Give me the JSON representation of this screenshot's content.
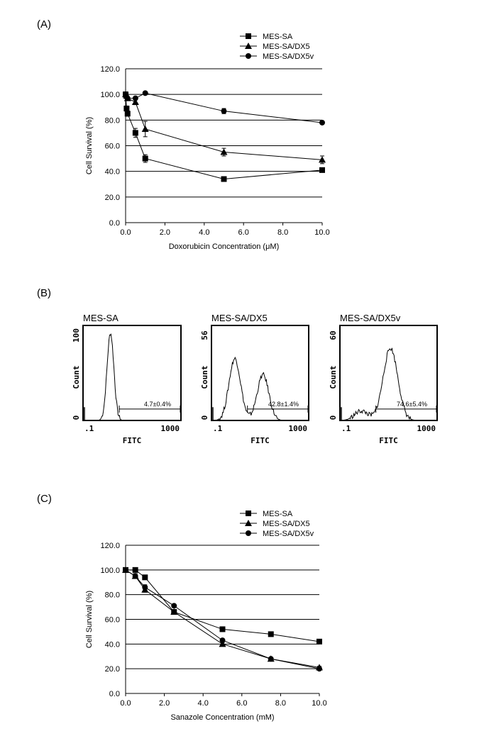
{
  "panels": {
    "a_label": "(A)",
    "b_label": "(B)",
    "c_label": "(C)"
  },
  "chart_data": [
    {
      "id": "A",
      "type": "line",
      "xlabel": "Doxorubicin Concentration (μM)",
      "ylabel": "Cell Survival (%)",
      "xlim": [
        0,
        10
      ],
      "ylim": [
        0,
        120
      ],
      "xticks": [
        "0.0",
        "2.0",
        "4.0",
        "6.0",
        "8.0",
        "10.0"
      ],
      "yticks": [
        "0.0",
        "20.0",
        "40.0",
        "60.0",
        "80.0",
        "100.0",
        "120.0"
      ],
      "grid": "horizontal",
      "legend": "top-right",
      "series": [
        {
          "name": "MES-SA",
          "marker": "square",
          "x": [
            0,
            0.05,
            0.1,
            0.5,
            1,
            5,
            10
          ],
          "y": [
            100,
            89,
            85,
            70,
            50,
            34,
            41
          ],
          "err": [
            2,
            2,
            2,
            3.5,
            3,
            1,
            1.5
          ]
        },
        {
          "name": "MES-SA/DX5",
          "marker": "triangle",
          "x": [
            0,
            0.05,
            0.1,
            0.5,
            1,
            5,
            10
          ],
          "y": [
            100,
            99,
            97,
            94,
            73,
            55,
            49
          ],
          "err": [
            1,
            1,
            1,
            2,
            6,
            3,
            3
          ]
        },
        {
          "name": "MES-SA/DX5v",
          "marker": "circle",
          "x": [
            0,
            0.05,
            0.1,
            0.5,
            1,
            5,
            10
          ],
          "y": [
            100,
            98,
            97,
            97,
            101,
            87,
            78
          ],
          "err": [
            1,
            1,
            1,
            1,
            1,
            2,
            1
          ]
        }
      ]
    },
    {
      "id": "C",
      "type": "line",
      "xlabel": "Sanazole Concentration (mM)",
      "ylabel": "Cell Survival (%)",
      "xlim": [
        0,
        10
      ],
      "ylim": [
        0,
        120
      ],
      "xticks": [
        "0.0",
        "2.0",
        "4.0",
        "6.0",
        "8.0",
        "10.0"
      ],
      "yticks": [
        "0.0",
        "20.0",
        "40.0",
        "60.0",
        "80.0",
        "100.0",
        "120.0"
      ],
      "grid": "horizontal",
      "legend": "top-right",
      "series": [
        {
          "name": "MES-SA",
          "marker": "square",
          "x": [
            0,
            0.5,
            1,
            2.5,
            5,
            7.5,
            10
          ],
          "y": [
            100,
            100,
            94,
            66,
            52,
            48,
            42
          ],
          "err": [
            0,
            1,
            1,
            1,
            1,
            1,
            1
          ]
        },
        {
          "name": "MES-SA/DX5",
          "marker": "triangle",
          "x": [
            0,
            0.5,
            1,
            2.5,
            5,
            7.5,
            10
          ],
          "y": [
            100,
            95,
            84,
            66,
            40,
            28,
            21
          ],
          "err": [
            0,
            2,
            2,
            1,
            1,
            1,
            1
          ]
        },
        {
          "name": "MES-SA/DX5v",
          "marker": "circle",
          "x": [
            0,
            0.5,
            1,
            2.5,
            5,
            7.5,
            10
          ],
          "y": [
            100,
            95,
            86,
            71,
            43,
            28,
            20
          ],
          "err": [
            0,
            2,
            2,
            1,
            1,
            1,
            1
          ]
        }
      ]
    }
  ],
  "flow": [
    {
      "title": "MES-SA",
      "ymax": "100",
      "ymin": "0",
      "xmin": ".1",
      "xmax": "1000",
      "ylabel": "Count",
      "xlabel": "FITC",
      "gate": "4.7±0.4%"
    },
    {
      "title": "MES-SA/DX5",
      "ymax": "56",
      "ymin": "0",
      "xmin": ".1",
      "xmax": "1000",
      "ylabel": "Count",
      "xlabel": "FITC",
      "gate": "42.8±1.4%"
    },
    {
      "title": "MES-SA/DX5v",
      "ymax": "60",
      "ymin": "0",
      "xmin": ".1",
      "xmax": "1000",
      "ylabel": "Count",
      "xlabel": "FITC",
      "gate": "74.6±5.4%"
    }
  ]
}
